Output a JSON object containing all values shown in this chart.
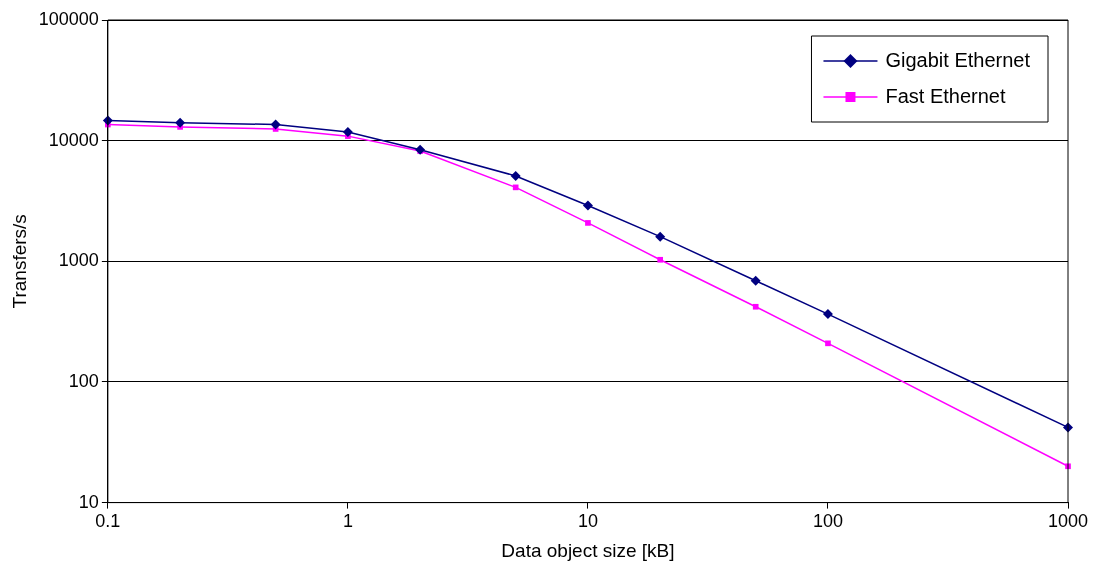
{
  "chart_data": {
    "type": "line",
    "xlabel": "Data object size [kB]",
    "ylabel": "Transfers/s",
    "log": "xy",
    "grid": "y",
    "legend": "top right",
    "x": [
      0.1,
      0.2,
      0.5,
      1,
      2,
      5,
      10,
      20,
      50,
      100,
      1000
    ],
    "xlim": [
      0.1,
      1000
    ],
    "xticks": [
      0.1,
      1,
      10,
      100,
      1000
    ],
    "ylim": [
      10,
      100000
    ],
    "yticks": [
      10,
      100,
      1000,
      10000,
      100000
    ],
    "series": [
      {
        "name": "Gigabit Ethernet",
        "color": "#000080",
        "marker": "diamond",
        "values": [
          14700,
          14100,
          13600,
          11800,
          8400,
          5100,
          2900,
          1600,
          690,
          365,
          42
        ]
      },
      {
        "name": "Fast Ethernet",
        "color": "#ff00ff",
        "marker": "square",
        "values": [
          13600,
          13000,
          12500,
          10900,
          8200,
          4100,
          2080,
          1030,
          420,
          209,
          20
        ]
      }
    ]
  }
}
